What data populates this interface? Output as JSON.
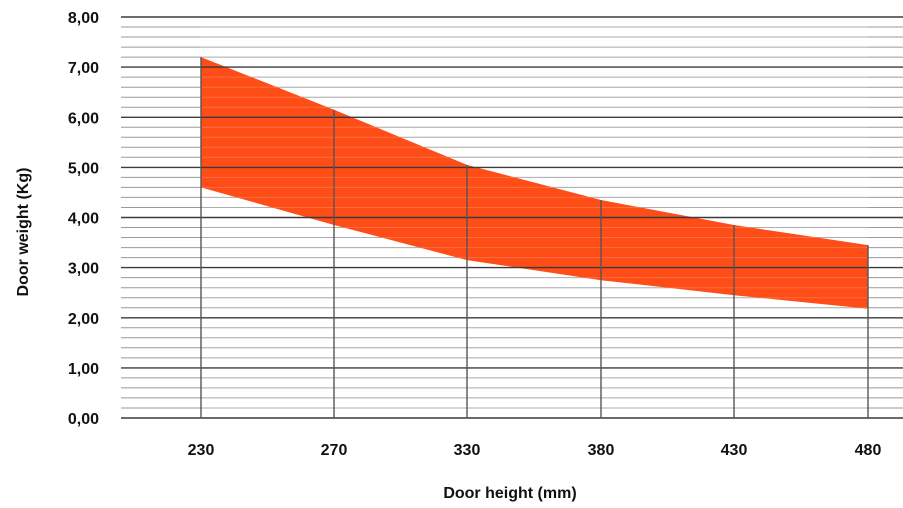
{
  "chart_data": {
    "type": "area",
    "title": "",
    "xlabel": "Door height (mm)",
    "ylabel": "Door weight (Kg)",
    "categories": [
      "230",
      "270",
      "330",
      "380",
      "430",
      "480"
    ],
    "ylim": [
      0,
      8
    ],
    "y_ticks": [
      "0,00",
      "1,00",
      "2,00",
      "3,00",
      "4,00",
      "5,00",
      "6,00",
      "7,00",
      "8,00"
    ],
    "grid": true,
    "minor_grid_step": 0.2,
    "series": [
      {
        "values": [
          7.2,
          6.15,
          5.05,
          4.35,
          3.85,
          3.45
        ]
      },
      {
        "values": [
          4.6,
          3.85,
          3.15,
          2.75,
          2.45,
          2.18
        ]
      }
    ],
    "colors": {
      "band": "#ff4d17",
      "grid_major": "#3a3a3a",
      "grid_minor": "#9a9a9a",
      "text": "#111111"
    }
  }
}
